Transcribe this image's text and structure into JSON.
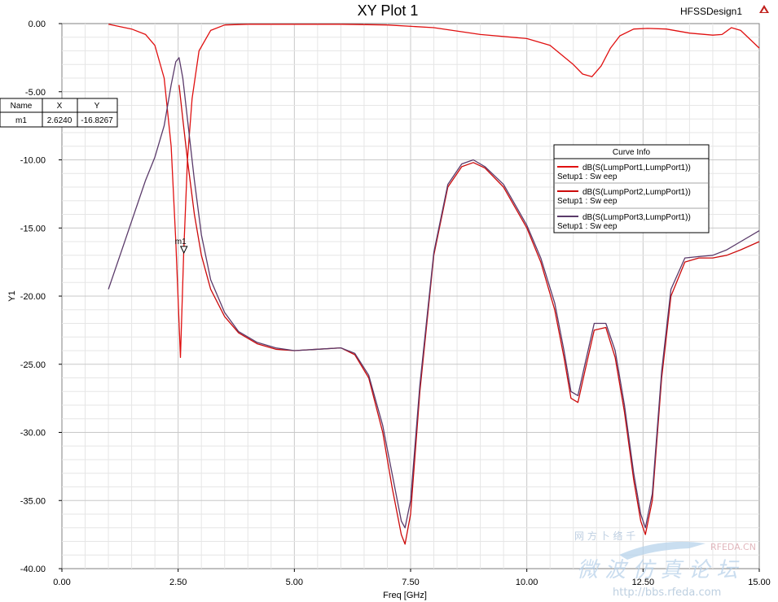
{
  "header": {
    "title": "XY Plot 1",
    "design_name": "HFSSDesign1"
  },
  "marker_table": {
    "headers": [
      "Name",
      "X",
      "Y"
    ],
    "rows": [
      [
        "m1",
        "2.6240",
        "-16.8267"
      ]
    ]
  },
  "marker_label": "m1",
  "legend": {
    "title": "Curve Info",
    "entries": [
      {
        "name": "dB(S(LumpPort1,LumpPort1))",
        "sub": "Setup1 : Sw eep",
        "color": "#e01010"
      },
      {
        "name": "dB(S(LumpPort2,LumpPort1))",
        "sub": "Setup1 : Sw eep",
        "color": "#cc0a0a"
      },
      {
        "name": "dB(S(LumpPort3,LumpPort1))",
        "sub": "Setup1 : Sw eep",
        "color": "#5a3a6a"
      }
    ]
  },
  "watermark": {
    "line1": "网 方 卜 络 千",
    "brand": "RFEDA.CN",
    "line2": "微 波 仿 真 论 坛",
    "url": "http://bbs.rfeda.com"
  },
  "chart_data": {
    "type": "line",
    "title": "XY Plot 1",
    "xlabel": "Freq [GHz]",
    "ylabel": "Y1",
    "xlim": [
      0,
      15
    ],
    "ylim": [
      -40,
      0
    ],
    "xticks": [
      "0.00",
      "2.50",
      "5.00",
      "7.50",
      "10.00",
      "12.50",
      "15.00"
    ],
    "yticks": [
      "0.00",
      "-5.00",
      "-10.00",
      "-15.00",
      "-20.00",
      "-25.00",
      "-30.00",
      "-35.00",
      "-40.00"
    ],
    "grid": true,
    "legend_position": "right",
    "marker": {
      "name": "m1",
      "x": 2.624,
      "y": -16.8267
    },
    "series": [
      {
        "name": "dB(S(LumpPort1,LumpPort1))",
        "color": "#e01010",
        "x": [
          1.0,
          1.5,
          1.8,
          2.0,
          2.2,
          2.35,
          2.45,
          2.55,
          2.62,
          2.7,
          2.8,
          2.95,
          3.2,
          3.5,
          4.0,
          5.0,
          6.0,
          7.0,
          8.0,
          9.0,
          10.0,
          10.5,
          11.0,
          11.2,
          11.4,
          11.6,
          11.8,
          12.0,
          12.3,
          12.6,
          13.0,
          13.5,
          14.0,
          14.2,
          14.4,
          14.6,
          15.0
        ],
        "y": [
          -0.05,
          -0.4,
          -0.8,
          -1.6,
          -4.0,
          -9.0,
          -16.0,
          -24.5,
          -16.8,
          -10.0,
          -5.5,
          -2.0,
          -0.5,
          -0.1,
          -0.05,
          -0.05,
          -0.05,
          -0.1,
          -0.3,
          -0.8,
          -1.1,
          -1.6,
          -3.0,
          -3.7,
          -3.9,
          -3.1,
          -1.8,
          -0.9,
          -0.4,
          -0.35,
          -0.4,
          -0.7,
          -0.85,
          -0.8,
          -0.3,
          -0.5,
          -1.8
        ]
      },
      {
        "name": "dB(S(LumpPort2,LumpPort1))",
        "color": "#cc0a0a",
        "x": [
          2.52,
          2.6,
          2.7,
          2.85,
          3.0,
          3.2,
          3.5,
          3.8,
          4.2,
          4.6,
          5.0,
          5.5,
          6.0,
          6.3,
          6.6,
          6.9,
          7.1,
          7.3,
          7.38,
          7.5,
          7.7,
          8.0,
          8.3,
          8.6,
          8.85,
          9.1,
          9.5,
          10.0,
          10.3,
          10.6,
          10.8,
          10.95,
          11.1,
          11.25,
          11.45,
          11.7,
          11.9,
          12.1,
          12.3,
          12.45,
          12.55,
          12.7,
          12.9,
          13.1,
          13.4,
          13.7,
          14.0,
          14.3,
          14.6,
          15.0
        ],
        "y": [
          -4.5,
          -7.0,
          -10.0,
          -14.0,
          -17.0,
          -19.5,
          -21.5,
          -22.7,
          -23.5,
          -23.9,
          -24.0,
          -23.9,
          -23.8,
          -24.3,
          -26.0,
          -30.0,
          -34.0,
          -37.5,
          -38.2,
          -36.0,
          -27.0,
          -17.0,
          -12.0,
          -10.5,
          -10.2,
          -10.6,
          -12.0,
          -15.0,
          -17.5,
          -21.0,
          -24.5,
          -27.5,
          -27.8,
          -25.5,
          -22.5,
          -22.3,
          -24.5,
          -28.5,
          -33.5,
          -36.5,
          -37.5,
          -35.0,
          -26.0,
          -20.0,
          -17.5,
          -17.2,
          -17.2,
          -17.0,
          -16.6,
          -16.0
        ]
      },
      {
        "name": "dB(S(LumpPort3,LumpPort1))",
        "color": "#5a3a6a",
        "x": [
          1.0,
          1.3,
          1.6,
          1.8,
          2.0,
          2.2,
          2.35,
          2.45,
          2.52,
          2.6,
          2.7,
          2.85,
          3.0,
          3.2,
          3.5,
          3.8,
          4.2,
          4.6,
          5.0,
          5.5,
          6.0,
          6.3,
          6.6,
          6.9,
          7.1,
          7.3,
          7.38,
          7.5,
          7.7,
          8.0,
          8.3,
          8.6,
          8.85,
          9.1,
          9.5,
          10.0,
          10.3,
          10.6,
          10.8,
          10.95,
          11.1,
          11.25,
          11.45,
          11.7,
          11.9,
          12.1,
          12.3,
          12.45,
          12.55,
          12.7,
          12.9,
          13.1,
          13.4,
          13.7,
          14.0,
          14.3,
          14.6,
          15.0
        ],
        "y": [
          -19.5,
          -16.5,
          -13.5,
          -11.5,
          -9.8,
          -7.5,
          -4.5,
          -2.8,
          -2.5,
          -4.0,
          -7.0,
          -11.5,
          -15.5,
          -18.8,
          -21.2,
          -22.6,
          -23.4,
          -23.8,
          -24.0,
          -23.9,
          -23.8,
          -24.2,
          -25.8,
          -29.5,
          -33.0,
          -36.5,
          -37.0,
          -35.0,
          -26.5,
          -16.8,
          -11.8,
          -10.3,
          -10.0,
          -10.5,
          -11.8,
          -14.8,
          -17.2,
          -20.5,
          -24.0,
          -27.0,
          -27.3,
          -25.0,
          -22.0,
          -22.0,
          -24.0,
          -28.0,
          -33.0,
          -36.0,
          -37.0,
          -34.5,
          -25.5,
          -19.5,
          -17.2,
          -17.1,
          -17.0,
          -16.6,
          -16.0,
          -15.2
        ]
      }
    ]
  }
}
